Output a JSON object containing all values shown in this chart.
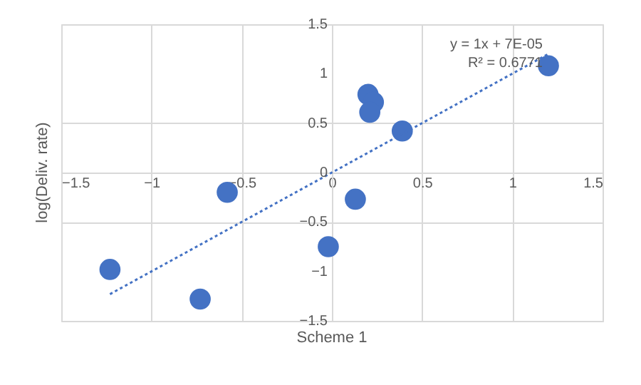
{
  "chart_data": {
    "type": "scatter",
    "xlabel": "Scheme 1",
    "ylabel": "log(Deliv. rate)",
    "x": [
      1.2,
      0.2,
      0.23,
      0.21,
      0.39,
      -0.58,
      0.13,
      -0.02,
      -1.23,
      -0.73
    ],
    "series": [
      {
        "color": "#4472c4",
        "marker": "circle",
        "values": [
          1.08,
          0.79,
          0.71,
          0.61,
          0.42,
          -0.2,
          -0.27,
          -0.75,
          -0.98,
          -1.28
        ]
      },
      {
        "type": "line",
        "color": "#4472c4",
        "line_style": "dotted",
        "marker": "none",
        "x": [
          -1.23,
          1.2
        ],
        "values": [
          -1.23,
          1.2
        ]
      }
    ],
    "annotations": [
      "y = 1x + 7E-05",
      "R² = 0.6771"
    ],
    "xlim": [
      -1.5,
      1.5
    ],
    "ylim": [
      -1.5,
      1.5
    ],
    "xticks": [
      -1.5,
      -1,
      -0.5,
      0,
      0.5,
      1,
      1.5
    ],
    "yticks": [
      -1.5,
      -1,
      -0.5,
      0,
      0.5,
      1,
      1.5
    ],
    "grid": true
  }
}
